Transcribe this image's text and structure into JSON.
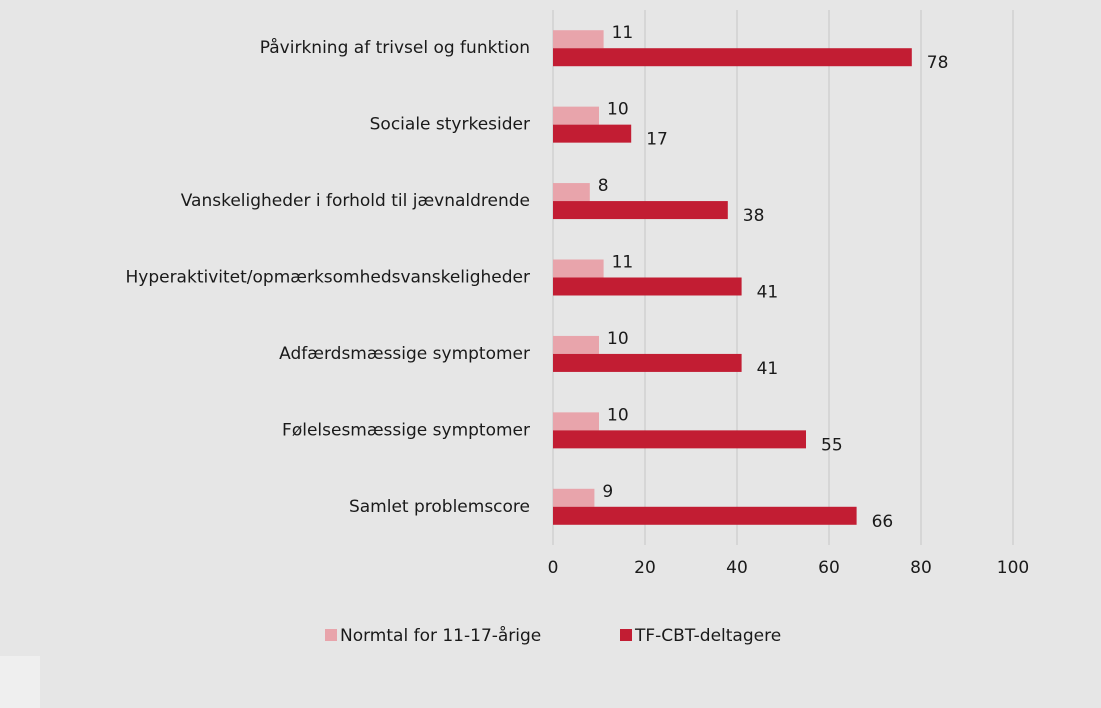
{
  "chart_data": {
    "type": "bar",
    "categories": [
      "Påvirkning af trivsel og funktion",
      "Sociale styrkesider",
      "Vanskeligheder i forhold til jævnaldrende",
      "Hyperaktivitet/opmærksomhedsvanskeligheder",
      "Adfærdsmæssige symptomer",
      "Følelsesmæssige symptomer",
      "Samlet problemscore"
    ],
    "series": [
      {
        "name": "Normtal for 11-17-årige",
        "color": "#e8a4ab",
        "values": [
          11,
          10,
          8,
          11,
          10,
          10,
          9
        ]
      },
      {
        "name": "TF-CBT-deltagere",
        "color": "#c21d33",
        "values": [
          78,
          17,
          38,
          41,
          41,
          55,
          66
        ]
      }
    ],
    "xlim": [
      0,
      100
    ],
    "xticks": [
      0,
      20,
      40,
      60,
      80,
      100
    ],
    "grid": true,
    "legend": "bottom"
  }
}
